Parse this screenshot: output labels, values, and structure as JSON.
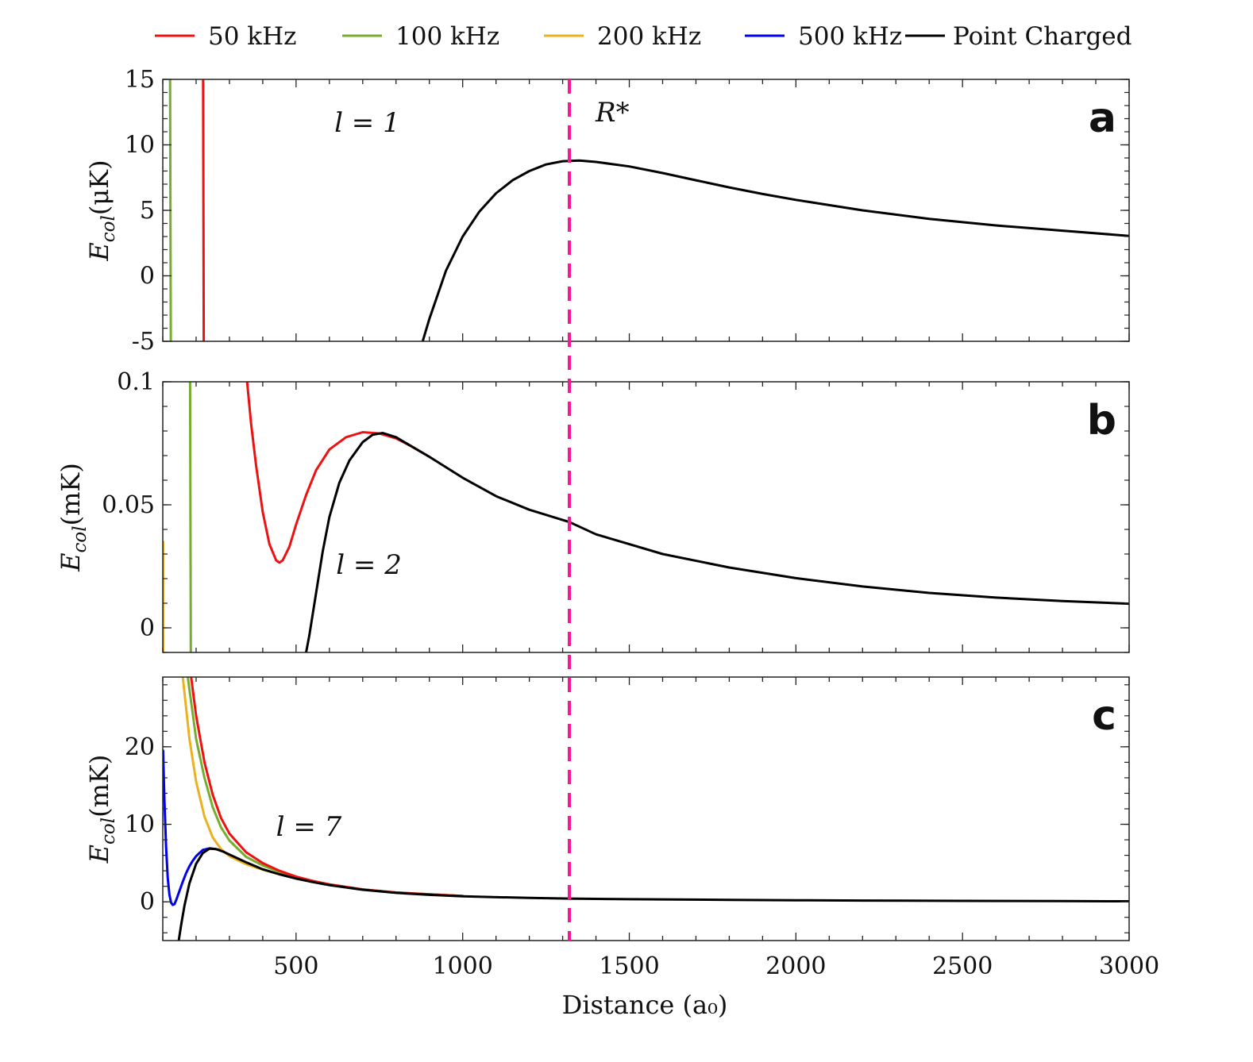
{
  "chart_data": {
    "type": "line",
    "xlabel": "Distance (a₀)",
    "xlim": [
      100,
      3000
    ],
    "x_ticks": [
      500,
      1000,
      1500,
      2000,
      2500,
      3000
    ],
    "x_tick_labels": [
      "500",
      "1000",
      "1500",
      "2000",
      "2500",
      "3000"
    ],
    "legend": [
      {
        "label": "50 kHz",
        "color": "#ee1111"
      },
      {
        "label": "100 kHz",
        "color": "#77ac30"
      },
      {
        "label": "200 kHz",
        "color": "#edb120"
      },
      {
        "label": "500 kHz",
        "color": "#0000ee"
      },
      {
        "label": "Point Charged",
        "color": "#000000"
      }
    ],
    "reference_line": {
      "label": "R*",
      "x": 1320,
      "color": "#ff1493",
      "style": "dashed"
    },
    "panels": [
      {
        "letter": "a",
        "ylabel": "E_col(μK)",
        "ylabel_main": "E",
        "ylabel_sub": "col",
        "ylabel_unit": "(μK)",
        "ylim": [
          -5,
          15
        ],
        "y_ticks": [
          -5,
          0,
          5,
          10,
          15
        ],
        "y_tick_labels": [
          "-5",
          "0",
          "5",
          "10",
          "15"
        ],
        "annotation": "l = 1",
        "annotation_pos": [
          615,
          11
        ],
        "series": [
          {
            "name": "100 kHz",
            "color": "#77ac30",
            "x": [
              122,
              124
            ],
            "y": [
              15,
              -5
            ]
          },
          {
            "name": "50 kHz",
            "color": "#ee1111",
            "x": [
              221,
              223
            ],
            "y": [
              15,
              -5
            ]
          },
          {
            "name": "Point Charged",
            "color": "#000000",
            "x": [
              880,
              900,
              950,
              1000,
              1050,
              1100,
              1150,
              1200,
              1250,
              1300,
              1350,
              1400,
              1500,
              1600,
              1700,
              1800,
              1900,
              2000,
              2200,
              2400,
              2600,
              2800,
              3000
            ],
            "y": [
              -5.0,
              -3.3,
              0.4,
              3.0,
              4.9,
              6.3,
              7.3,
              8.0,
              8.5,
              8.75,
              8.8,
              8.7,
              8.35,
              7.85,
              7.3,
              6.75,
              6.25,
              5.8,
              5.0,
              4.35,
              3.85,
              3.45,
              3.05
            ]
          }
        ]
      },
      {
        "letter": "b",
        "ylabel": "E_col(mK)",
        "ylabel_main": "E",
        "ylabel_sub": "col",
        "ylabel_unit": "(mK)",
        "ylim": [
          -0.01,
          0.1
        ],
        "y_ticks": [
          0,
          0.05,
          0.1
        ],
        "y_tick_labels": [
          "0",
          "0.05",
          "0.1"
        ],
        "annotation": "l = 2",
        "annotation_pos": [
          620,
          0.022
        ],
        "series": [
          {
            "name": "200 kHz",
            "color": "#edb120",
            "x": [
              101,
              101
            ],
            "y": [
              0.035,
              -0.01
            ]
          },
          {
            "name": "100 kHz",
            "color": "#77ac30",
            "x": [
              182,
              184
            ],
            "y": [
              0.1,
              -0.01
            ]
          },
          {
            "name": "50 kHz",
            "color": "#ee1111",
            "x": [
              353,
              365,
              380,
              400,
              420,
              440,
              450,
              460,
              480,
              500,
              530,
              560,
              600,
              650,
              700,
              750,
              800,
              850,
              900
            ],
            "y": [
              0.1,
              0.083,
              0.066,
              0.047,
              0.034,
              0.0275,
              0.0265,
              0.0275,
              0.033,
              0.042,
              0.054,
              0.064,
              0.0725,
              0.0775,
              0.0795,
              0.079,
              0.077,
              0.0735,
              0.0695
            ]
          },
          {
            "name": "Point Charged",
            "color": "#000000",
            "x": [
              530,
              540,
              560,
              580,
              600,
              630,
              660,
              700,
              730,
              760,
              800,
              850,
              900,
              1000,
              1100,
              1200,
              1320,
              1400,
              1500,
              1600,
              1800,
              2000,
              2200,
              2400,
              2600,
              2800,
              3000
            ],
            "y": [
              -0.01,
              -0.003,
              0.014,
              0.031,
              0.045,
              0.059,
              0.068,
              0.0755,
              0.0785,
              0.0792,
              0.0775,
              0.0735,
              0.0695,
              0.061,
              0.0535,
              0.048,
              0.043,
              0.038,
              0.034,
              0.03,
              0.0245,
              0.0202,
              0.0168,
              0.0142,
              0.0123,
              0.0109,
              0.0098
            ]
          }
        ]
      },
      {
        "letter": "c",
        "ylabel": "E_col(mK)",
        "ylabel_main": "E",
        "ylabel_sub": "col",
        "ylabel_unit": "(mK)",
        "ylim": [
          -5,
          29
        ],
        "y_ticks": [
          0,
          10,
          20
        ],
        "y_tick_labels": [
          "0",
          "10",
          "20"
        ],
        "annotation": "l = 7",
        "annotation_pos": [
          440,
          8.5
        ],
        "series": [
          {
            "name": "500 kHz",
            "color": "#0000ee",
            "x": [
              101,
              105,
              110,
              115,
              120,
              125,
              130,
              135,
              140,
              145,
              150,
              160,
              170,
              180,
              190,
              200,
              220,
              240,
              260,
              280
            ],
            "y": [
              19.5,
              13.0,
              7.0,
              3.0,
              0.9,
              -0.1,
              -0.4,
              -0.3,
              0.2,
              0.8,
              1.4,
              2.6,
              3.7,
              4.6,
              5.3,
              5.9,
              6.7,
              6.9,
              6.8,
              6.6
            ]
          },
          {
            "name": "200 kHz",
            "color": "#edb120",
            "x": [
              160,
              180,
              200,
              225,
              250,
              275,
              300,
              350,
              400,
              450,
              500,
              550,
              600,
              700,
              800,
              1000
            ],
            "y": [
              29,
              21,
              15.5,
              11.0,
              8.3,
              6.8,
              5.9,
              4.85,
              4.15,
              3.55,
              3.05,
              2.6,
              2.2,
              1.6,
              1.2,
              0.75
            ]
          },
          {
            "name": "100 kHz",
            "color": "#77ac30",
            "x": [
              175,
              200,
              225,
              250,
              275,
              300,
              350,
              400,
              450,
              500,
              550,
              600,
              700,
              800,
              1000
            ],
            "y": [
              29,
              21,
              16.0,
              12.2,
              9.6,
              7.9,
              5.8,
              4.7,
              3.85,
              3.2,
              2.65,
              2.25,
              1.6,
              1.2,
              0.75
            ]
          },
          {
            "name": "50 kHz",
            "color": "#ee1111",
            "x": [
              185,
              200,
              225,
              250,
              275,
              300,
              350,
              400,
              450,
              500,
              550,
              600,
              700,
              800,
              1000
            ],
            "y": [
              29,
              24,
              18.0,
              13.8,
              10.8,
              8.8,
              6.4,
              5.0,
              4.0,
              3.25,
              2.7,
              2.25,
              1.6,
              1.2,
              0.75
            ]
          },
          {
            "name": "Point Charged",
            "color": "#000000",
            "x": [
              148,
              155,
              165,
              180,
              200,
              220,
              240,
              260,
              280,
              300,
              350,
              400,
              450,
              500,
              550,
              600,
              700,
              800,
              900,
              1000,
              1200,
              1320,
              1500,
              1800,
              2000,
              2200,
              2500,
              2800,
              3000
            ],
            "y": [
              -5,
              -3.0,
              -0.5,
              2.4,
              4.9,
              6.3,
              6.85,
              6.8,
              6.5,
              6.1,
              5.1,
              4.2,
              3.55,
              3.0,
              2.55,
              2.15,
              1.55,
              1.15,
              0.9,
              0.7,
              0.5,
              0.42,
              0.34,
              0.25,
              0.2,
              0.16,
              0.12,
              0.09,
              0.07
            ]
          }
        ]
      }
    ]
  }
}
